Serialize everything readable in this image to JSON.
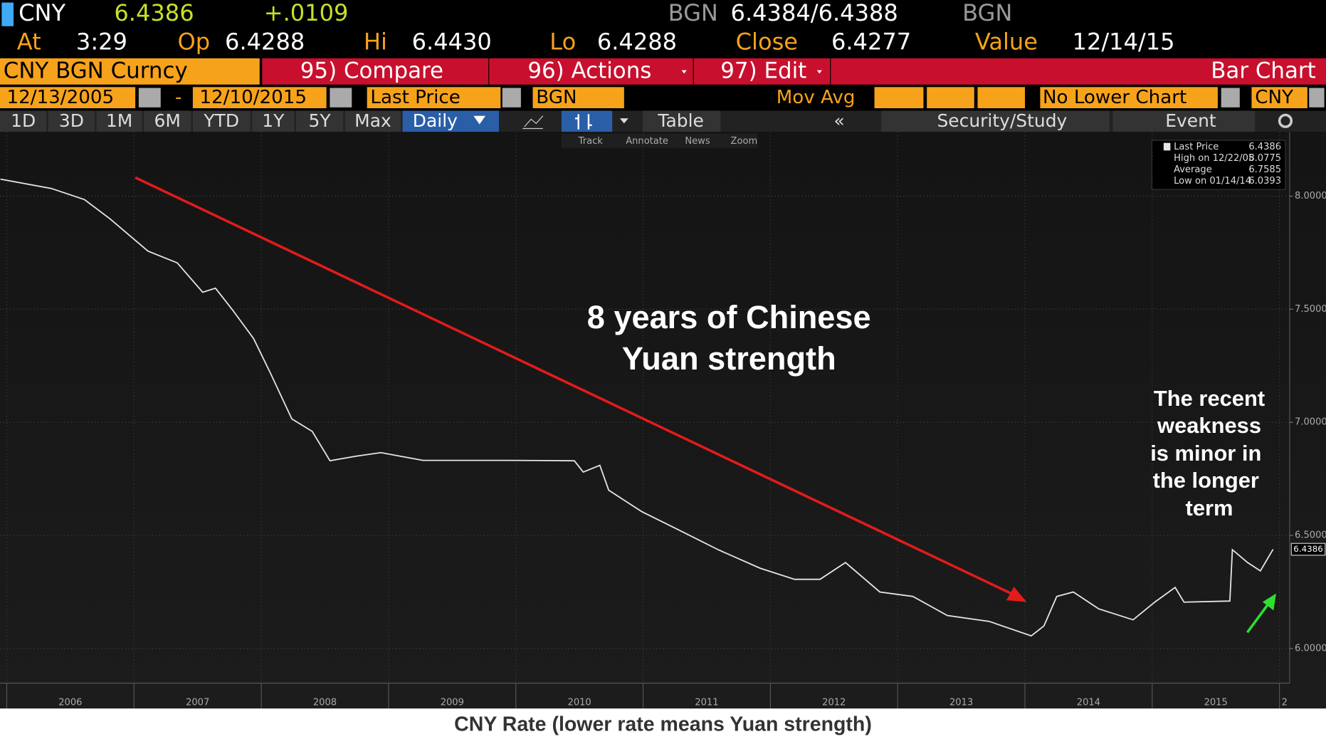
{
  "header": {
    "ticker": "CNY",
    "price": "6.4386",
    "change": "+.0109",
    "bid_src": "BGN",
    "bid_ask": "6.4384/6.4388",
    "ask_src": "BGN",
    "at_label": "At",
    "at_value": "3:29",
    "op_label": "Op",
    "op_value": "6.4288",
    "hi_label": "Hi",
    "hi_value": "6.4430",
    "lo_label": "Lo",
    "lo_value": "6.4288",
    "close_label": "Close",
    "close_value": "6.4277",
    "value_label": "Value",
    "value_value": "12/14/15"
  },
  "toolbar": {
    "security": "CNY BGN Curncy",
    "compare": "95) Compare",
    "actions": "96) Actions",
    "edit": "97) Edit",
    "view": "Bar Chart",
    "start_date": "12/13/2005",
    "dash": "-",
    "end_date": "12/10/2015",
    "field": "Last Price",
    "source": "BGN",
    "mov_avg": "Mov Avg",
    "lower_chart": "No Lower Chart",
    "currency": "CNY",
    "periods": [
      "1D",
      "3D",
      "1M",
      "6M",
      "YTD",
      "1Y",
      "5Y",
      "Max"
    ],
    "frequency": "Daily",
    "table": "Table",
    "back": "«",
    "study": "Security/Study",
    "event": "Event"
  },
  "chart_tools": [
    "Track",
    "Annotate",
    "News",
    "Zoom"
  ],
  "annotations": [
    "8 years of Chinese",
    "Yuan strength",
    "The recent",
    "weakness",
    "is minor in",
    "the longer",
    "term"
  ],
  "caption": "CNY Rate (lower rate means Yuan strength)",
  "chart_data": {
    "type": "line",
    "stats": [
      {
        "label": "Last Price",
        "value": "6.4386"
      },
      {
        "label": "High on 12/22/05",
        "value": "8.0775"
      },
      {
        "label": "Average",
        "value": "6.7585"
      },
      {
        "label": "Low on 01/14/14",
        "value": "6.0393"
      }
    ],
    "x": [
      2005.95,
      2006.35,
      2006.61,
      2006.81,
      2007.11,
      2007.34,
      2007.54,
      2007.64,
      2007.77,
      2007.94,
      2008.07,
      2008.24,
      2008.4,
      2008.54,
      2008.74,
      2008.94,
      2009.27,
      2009.93,
      2010.46,
      2010.53,
      2010.66,
      2010.73,
      2010.99,
      2011.26,
      2011.59,
      2011.92,
      2012.19,
      2012.39,
      2012.59,
      2012.86,
      2013.12,
      2013.39,
      2013.72,
      2014.05,
      2014.15,
      2014.25,
      2014.38,
      2014.58,
      2014.85,
      2015.02,
      2015.18,
      2015.25,
      2015.61,
      2015.63,
      2015.75,
      2015.85,
      2015.95
    ],
    "series": [
      {
        "color": "#e6e6e6",
        "values": [
          8.075,
          8.034,
          7.985,
          7.9,
          7.757,
          7.705,
          7.575,
          7.593,
          7.5,
          7.37,
          7.22,
          7.015,
          6.96,
          6.83,
          6.85,
          6.866,
          6.832,
          6.832,
          6.83,
          6.78,
          6.81,
          6.7,
          6.605,
          6.53,
          6.437,
          6.355,
          6.306,
          6.306,
          6.38,
          6.25,
          6.23,
          6.146,
          6.12,
          6.056,
          6.1,
          6.23,
          6.25,
          6.175,
          6.127,
          6.205,
          6.27,
          6.205,
          6.21,
          6.437,
          6.38,
          6.343,
          6.4386
        ]
      }
    ],
    "xlim": [
      2005.947,
      2016.08
    ],
    "xticks": [
      2006,
      2007,
      2008,
      2009,
      2010,
      2011,
      2012,
      2013,
      2014,
      2015,
      {
        "value": 2016,
        "label": "2"
      }
    ],
    "ylim": [
      5.847,
      8.284
    ],
    "yticks": [
      {
        "value": 6,
        "label": "6.0000"
      },
      {
        "value": 6.5,
        "label": "6.5000"
      },
      {
        "value": 7,
        "label": "7.0000"
      },
      {
        "value": 7.5,
        "label": "7.5000"
      },
      {
        "value": 8,
        "label": "8.0000"
      }
    ],
    "grid": true
  }
}
